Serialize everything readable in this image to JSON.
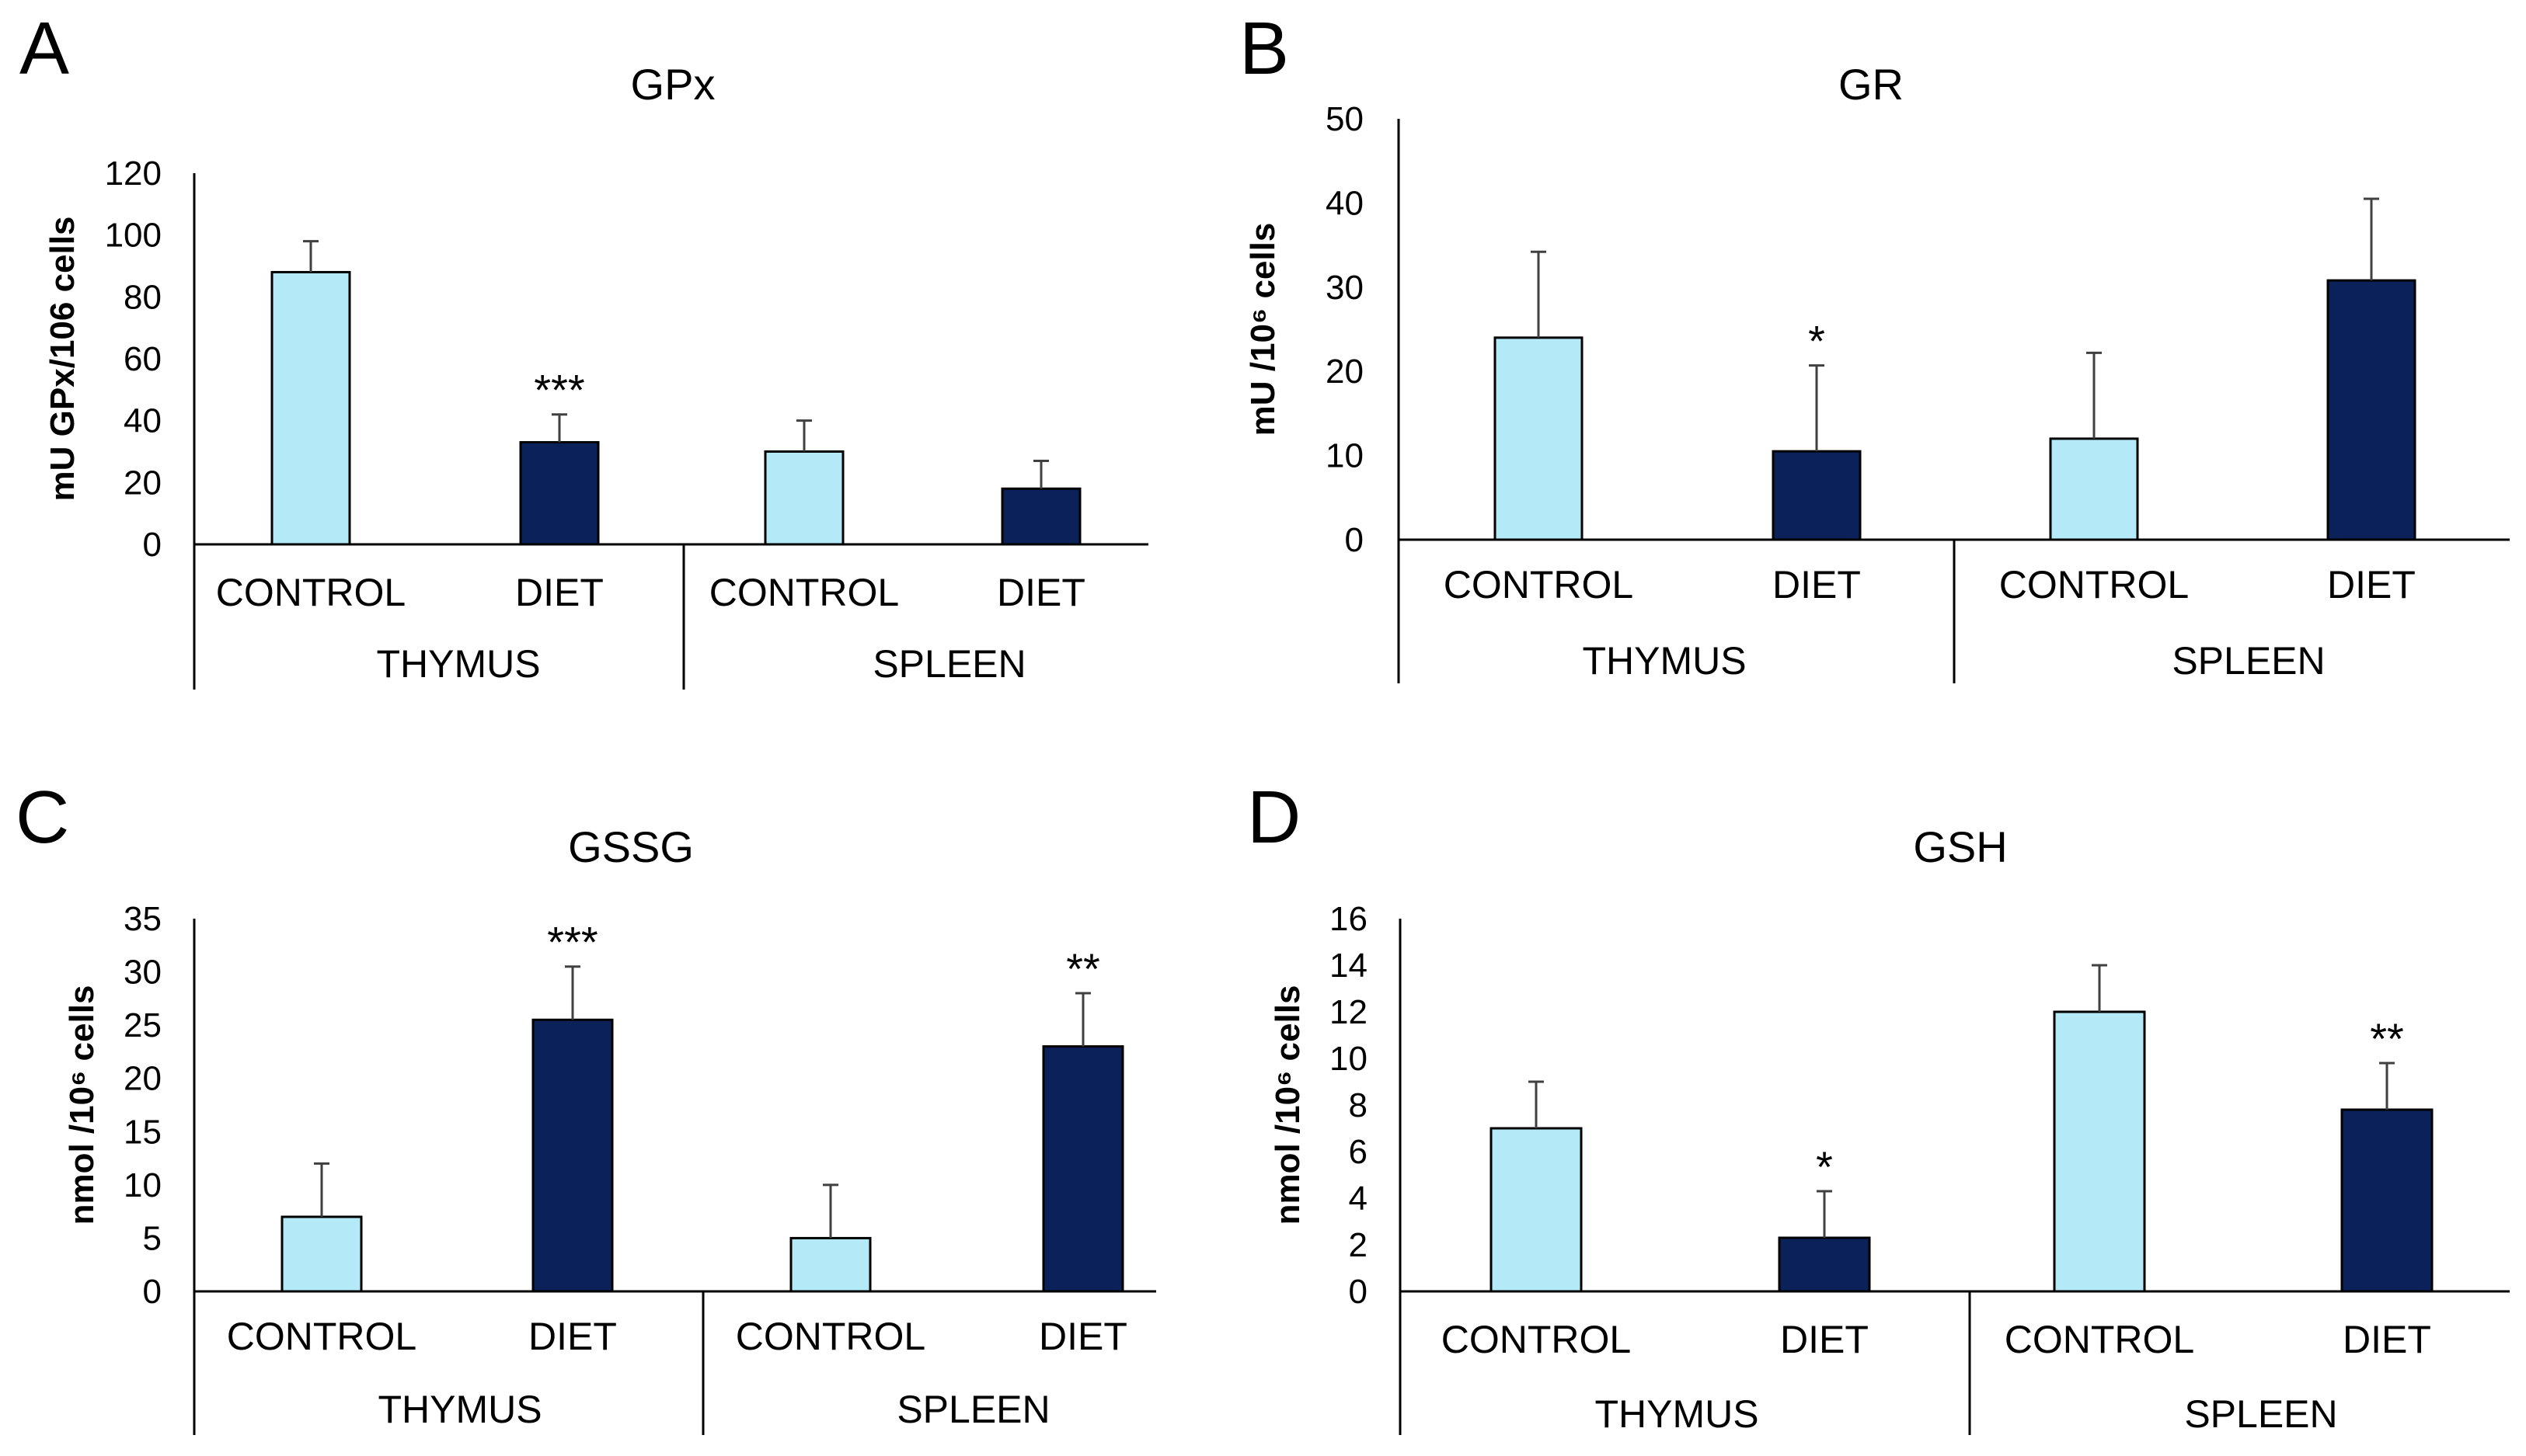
{
  "colors": {
    "control": "#b4e9f8",
    "diet": "#0b2159",
    "axis": "#000000",
    "error": "#404040"
  },
  "chart_data": [
    {
      "type": "bar",
      "panel": "A",
      "title": "GPx",
      "ylabel": "mU GPx/106 cells",
      "ylim": [
        0,
        120
      ],
      "yticks": [
        "0",
        "20",
        "40",
        "60",
        "80",
        "100",
        "120"
      ],
      "groups": [
        "THYMUS",
        "SPLEEN"
      ],
      "categories": [
        "CONTROL",
        "DIET",
        "CONTROL",
        "DIET"
      ],
      "series": [
        {
          "name": "value",
          "values": [
            88,
            33,
            30,
            18
          ]
        }
      ],
      "errors": [
        10,
        9,
        10,
        9
      ],
      "significance": [
        "",
        "***",
        "",
        ""
      ]
    },
    {
      "type": "bar",
      "panel": "B",
      "title": "GR",
      "ylabel": "mU /10⁶ cells",
      "ylim": [
        0,
        50
      ],
      "yticks": [
        "0",
        "10",
        "20",
        "30",
        "40",
        "50"
      ],
      "groups": [
        "THYMUS",
        "SPLEEN"
      ],
      "categories": [
        "CONTROL",
        "DIET",
        "CONTROL",
        "DIET"
      ],
      "series": [
        {
          "name": "value",
          "values": [
            24,
            10.5,
            12,
            30.8
          ]
        }
      ],
      "errors": [
        10.2,
        10.2,
        10.2,
        9.7
      ],
      "significance": [
        "",
        "*",
        "",
        ""
      ]
    },
    {
      "type": "bar",
      "panel": "C",
      "title": "GSSG",
      "ylabel": "nmol /10⁶ cells",
      "ylim": [
        0,
        35
      ],
      "yticks": [
        "0",
        "5",
        "10",
        "15",
        "20",
        "25",
        "30",
        "35"
      ],
      "groups": [
        "THYMUS",
        "SPLEEN"
      ],
      "categories": [
        "CONTROL",
        "DIET",
        "CONTROL",
        "DIET"
      ],
      "series": [
        {
          "name": "value",
          "values": [
            7,
            25.5,
            5,
            23
          ]
        }
      ],
      "errors": [
        5,
        5,
        5,
        5
      ],
      "significance": [
        "",
        "***",
        "",
        "**"
      ]
    },
    {
      "type": "bar",
      "panel": "D",
      "title": "GSH",
      "ylabel": "nmol /10⁶ cells",
      "ylim": [
        0,
        16
      ],
      "yticks": [
        "0",
        "2",
        "4",
        "6",
        "8",
        "10",
        "12",
        "14",
        "16"
      ],
      "groups": [
        "THYMUS",
        "SPLEEN"
      ],
      "categories": [
        "CONTROL",
        "DIET",
        "CONTROL",
        "DIET"
      ],
      "series": [
        {
          "name": "value",
          "values": [
            7,
            2.3,
            12,
            7.8
          ]
        }
      ],
      "errors": [
        2,
        2,
        2,
        2
      ],
      "significance": [
        "",
        "*",
        "",
        "**"
      ]
    }
  ]
}
